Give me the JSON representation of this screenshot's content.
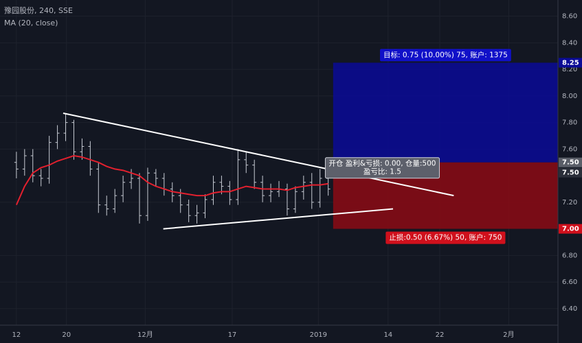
{
  "chart_data": {
    "type": "ohlc",
    "title": "豫园股份, 240, SSE",
    "subtitle": "MA (20, close)",
    "open": [
      7.5,
      7.45,
      7.55,
      7.4,
      7.38,
      7.65,
      7.72,
      7.8,
      7.58,
      7.62,
      7.45,
      7.18,
      7.15,
      7.25,
      7.35,
      7.38,
      7.1,
      7.42,
      7.38,
      7.3,
      7.25,
      7.18,
      7.1,
      7.12,
      7.22,
      7.35,
      7.32,
      7.22,
      7.52,
      7.48,
      7.35,
      7.25,
      7.28,
      7.3,
      7.15,
      7.28,
      7.35,
      7.2,
      7.38
    ],
    "high": [
      7.58,
      7.6,
      7.6,
      7.45,
      7.7,
      7.78,
      7.87,
      7.82,
      7.68,
      7.66,
      7.5,
      7.25,
      7.3,
      7.4,
      7.45,
      7.42,
      7.46,
      7.45,
      7.42,
      7.35,
      7.3,
      7.22,
      7.18,
      7.26,
      7.4,
      7.4,
      7.36,
      7.6,
      7.58,
      7.52,
      7.4,
      7.34,
      7.36,
      7.34,
      7.32,
      7.4,
      7.42,
      7.45,
      7.42
    ],
    "low": [
      7.38,
      7.4,
      7.35,
      7.32,
      7.34,
      7.6,
      7.66,
      7.52,
      7.52,
      7.4,
      7.12,
      7.1,
      7.12,
      7.2,
      7.3,
      7.04,
      7.06,
      7.32,
      7.25,
      7.2,
      7.12,
      7.05,
      7.04,
      7.08,
      7.18,
      7.26,
      7.18,
      7.18,
      7.42,
      7.3,
      7.2,
      7.2,
      7.24,
      7.1,
      7.12,
      7.22,
      7.15,
      7.16,
      7.25
    ],
    "close": [
      7.45,
      7.55,
      7.4,
      7.38,
      7.65,
      7.72,
      7.8,
      7.58,
      7.62,
      7.45,
      7.18,
      7.15,
      7.25,
      7.35,
      7.38,
      7.1,
      7.42,
      7.38,
      7.3,
      7.25,
      7.18,
      7.1,
      7.12,
      7.22,
      7.35,
      7.32,
      7.22,
      7.52,
      7.48,
      7.35,
      7.25,
      7.28,
      7.3,
      7.15,
      7.28,
      7.35,
      7.2,
      7.38,
      7.3
    ],
    "bar_color": "#c8ccd4",
    "ma": {
      "name": "MA (20, close)",
      "color": "#e3202e",
      "values": [
        7.18,
        7.32,
        7.42,
        7.46,
        7.48,
        7.51,
        7.53,
        7.55,
        7.54,
        7.52,
        7.5,
        7.47,
        7.45,
        7.44,
        7.42,
        7.4,
        7.35,
        7.32,
        7.3,
        7.28,
        7.27,
        7.26,
        7.25,
        7.25,
        7.27,
        7.28,
        7.28,
        7.3,
        7.32,
        7.31,
        7.3,
        7.3,
        7.3,
        7.29,
        7.31,
        7.32,
        7.33,
        7.33,
        7.34
      ]
    },
    "trendlines": [
      {
        "x": [
          5.7,
          53.3
        ],
        "y": [
          7.87,
          7.25
        ],
        "color": "#ffffff"
      },
      {
        "x": [
          17.9,
          45.9
        ],
        "y": [
          7.0,
          7.15
        ],
        "color": "#ffffff"
      }
    ],
    "position": {
      "start": 38.6,
      "entry": 7.5,
      "target": 8.25,
      "stop": 7.0,
      "target_color": "#0b0b96",
      "stop_color": "#8c0b14",
      "target_label": "目标: 0.75 (10.00%) 75, 账户: 1375",
      "center_label": [
        "开仓 盈利&亏损: 0.00, 仓量:500",
        "盈亏比: 1.5"
      ],
      "stop_label": "止损:0.50 (6.67%) 50, 账户: 750"
    },
    "xlim": [
      -2,
      66
    ],
    "xticks": [
      {
        "value": 0,
        "label": "12"
      },
      {
        "value": 6.1,
        "label": "20"
      },
      {
        "value": 15.7,
        "label": "12月"
      },
      {
        "value": 26.3,
        "label": "17"
      },
      {
        "value": 36.8,
        "label": "2019"
      },
      {
        "value": 45.3,
        "label": "14"
      },
      {
        "value": 51.6,
        "label": "22"
      },
      {
        "value": 60,
        "label": "2月"
      }
    ],
    "ylim": [
      6.2752,
      8.7219
    ],
    "yticks": [
      {
        "value": 6.4,
        "label": "6.40"
      },
      {
        "value": 6.6,
        "label": "6.60"
      },
      {
        "value": 6.8,
        "label": "6.80"
      },
      {
        "value": 7.2,
        "label": "7.20"
      },
      {
        "value": 7.6,
        "label": "7.60"
      },
      {
        "value": 7.8,
        "label": "7.80"
      },
      {
        "value": 8.0,
        "label": "8.00"
      },
      {
        "value": 8.2,
        "label": "8.20"
      },
      {
        "value": 8.4,
        "label": "8.40"
      },
      {
        "value": 8.6,
        "label": "8.60"
      }
    ],
    "price_badges": [
      {
        "value": 8.25,
        "label": "8.25",
        "color": "#0b0b96"
      },
      {
        "value": 7.5,
        "label": "7.50",
        "color": "#5a5e68"
      },
      {
        "value": 7.5,
        "label": "7.50",
        "color": "#2a2e39"
      },
      {
        "value": 7.0,
        "label": "7.00",
        "color": "#d0101c"
      }
    ],
    "grid": true
  }
}
